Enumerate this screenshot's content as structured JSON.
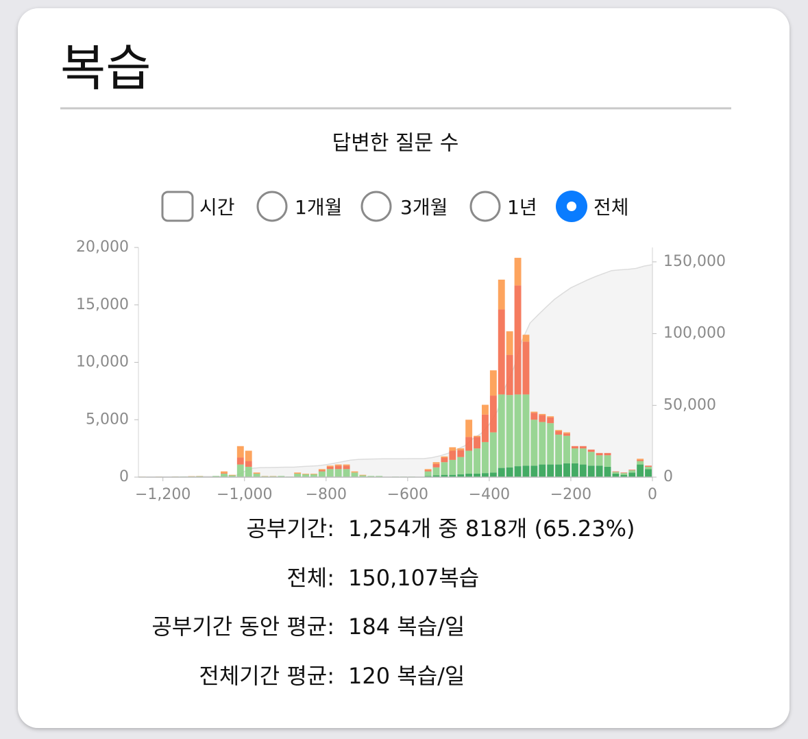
{
  "header": {
    "title": "복습"
  },
  "options": [
    {
      "label": "시간",
      "control": "checkbox",
      "checked": false
    },
    {
      "label": "1개월",
      "control": "radio",
      "checked": false
    },
    {
      "label": "3개월",
      "control": "radio",
      "checked": false
    },
    {
      "label": "1년",
      "control": "radio",
      "checked": false
    },
    {
      "label": "전체",
      "control": "radio",
      "checked": true
    }
  ],
  "chart_data": {
    "type": "histogram",
    "title": "답변한 질문 수",
    "bins": [
      -1260,
      -1240,
      -1220,
      -1200,
      -1180,
      -1160,
      -1140,
      -1120,
      -1100,
      -1080,
      -1060,
      -1040,
      -1020,
      -1000,
      -980,
      -960,
      -940,
      -920,
      -900,
      -880,
      -860,
      -840,
      -820,
      -800,
      -780,
      -760,
      -740,
      -720,
      -700,
      -680,
      -660,
      -640,
      -620,
      -600,
      -580,
      -560,
      -540,
      -520,
      -500,
      -480,
      -460,
      -440,
      -420,
      -400,
      -380,
      -360,
      -340,
      -320,
      -300,
      -280,
      -260,
      -240,
      -220,
      -200,
      -180,
      -160,
      -140,
      -120,
      -100,
      -80,
      -60,
      -40,
      -20,
      0
    ],
    "series": [
      {
        "color": "#31a354",
        "values": [
          0,
          0,
          0,
          0,
          0,
          0,
          0,
          0,
          0,
          0,
          0,
          0,
          0,
          0,
          0,
          0,
          0,
          0,
          0,
          0,
          0,
          0,
          0,
          0,
          0,
          0,
          0,
          0,
          0,
          0,
          0,
          0,
          0,
          0,
          0,
          100,
          150,
          200,
          200,
          250,
          300,
          300,
          350,
          400,
          800,
          850,
          950,
          1000,
          1000,
          1100,
          1100,
          1100,
          1200,
          1200,
          1100,
          1000,
          1000,
          900,
          300,
          200,
          400,
          1100,
          700
        ]
      },
      {
        "color": "#8fd18a",
        "values": [
          40,
          30,
          40,
          0,
          50,
          50,
          60,
          80,
          0,
          100,
          300,
          150,
          1100,
          900,
          300,
          80,
          80,
          100,
          50,
          300,
          250,
          250,
          500,
          700,
          700,
          700,
          400,
          150,
          100,
          100,
          0,
          50,
          50,
          50,
          0,
          400,
          700,
          1100,
          1300,
          1500,
          2000,
          2200,
          2700,
          3500,
          6400,
          6300,
          6250,
          6200,
          4000,
          3700,
          3600,
          2600,
          2400,
          1300,
          1400,
          1200,
          900,
          1000,
          150,
          150,
          200,
          300,
          200
        ]
      },
      {
        "color": "#f46d4e",
        "values": [
          0,
          0,
          0,
          0,
          0,
          0,
          0,
          0,
          0,
          0,
          50,
          0,
          600,
          500,
          0,
          0,
          0,
          0,
          0,
          0,
          0,
          0,
          100,
          200,
          300,
          300,
          0,
          0,
          0,
          0,
          0,
          0,
          0,
          0,
          0,
          100,
          300,
          400,
          800,
          600,
          1200,
          1000,
          2400,
          3200,
          7400,
          3500,
          9500,
          4600,
          600,
          600,
          500,
          300,
          200,
          200,
          200,
          200,
          200,
          200,
          50,
          50,
          50,
          100,
          100
        ]
      },
      {
        "color": "#fd9a4c",
        "values": [
          10,
          0,
          10,
          0,
          10,
          0,
          20,
          20,
          0,
          0,
          150,
          50,
          1000,
          900,
          100,
          20,
          20,
          0,
          0,
          100,
          50,
          50,
          100,
          100,
          100,
          100,
          100,
          50,
          0,
          0,
          0,
          0,
          0,
          0,
          0,
          100,
          150,
          100,
          300,
          150,
          1500,
          100,
          850,
          2200,
          2600,
          2050,
          2400,
          600,
          100,
          100,
          100,
          100,
          100,
          0,
          0,
          0,
          0,
          0,
          0,
          0,
          0,
          100,
          0
        ]
      }
    ],
    "cumulative": {
      "axis": "y2",
      "color": "#efefef",
      "values": [
        50,
        80,
        130,
        130,
        190,
        240,
        320,
        420,
        420,
        520,
        1000,
        1200,
        3900,
        6200,
        6600,
        6700,
        6800,
        6900,
        6950,
        7350,
        7650,
        7950,
        8650,
        9650,
        10750,
        11850,
        12350,
        12550,
        12650,
        12750,
        12750,
        12800,
        12850,
        12900,
        12900,
        13600,
        14900,
        16700,
        19300,
        21800,
        26800,
        30400,
        36700,
        46000,
        63200,
        75900,
        95000,
        107400,
        113100,
        118600,
        123900,
        128000,
        131900,
        134600,
        137300,
        139700,
        141800,
        143900,
        144400,
        144800,
        145450,
        147050,
        148050
      ]
    },
    "xlim": [
      -1260,
      0
    ],
    "xticks": [
      {
        "value": -1200,
        "label": "−1,200"
      },
      {
        "value": -1000,
        "label": "−1,000"
      },
      {
        "value": -800,
        "label": "−800"
      },
      {
        "value": -600,
        "label": "−600"
      },
      {
        "value": -400,
        "label": "−400"
      },
      {
        "value": -200,
        "label": "−200"
      },
      0
    ],
    "ylim": [
      0,
      20000
    ],
    "yticks": [
      0,
      {
        "value": 5000,
        "label": "5,000"
      },
      {
        "value": 10000,
        "label": "10,000"
      },
      {
        "value": 15000,
        "label": "15,000"
      },
      {
        "value": 20000,
        "label": "20,000"
      }
    ],
    "y2lim": [
      0,
      160000
    ],
    "y2ticks": [
      0,
      {
        "value": 50000,
        "label": "50,000"
      },
      {
        "value": 100000,
        "label": "100,000"
      },
      {
        "value": 150000,
        "label": "150,000"
      }
    ],
    "grid": false
  },
  "stats": [
    {
      "label": "공부기간:",
      "value": "1,254개 중 818개 (65.23%)"
    },
    {
      "label": "전체:",
      "value": "150,107복습"
    },
    {
      "label": "공부기간 동안 평균:",
      "value": "184 복습/일"
    },
    {
      "label": "전체기간 평균:",
      "value": "120 복습/일"
    }
  ]
}
